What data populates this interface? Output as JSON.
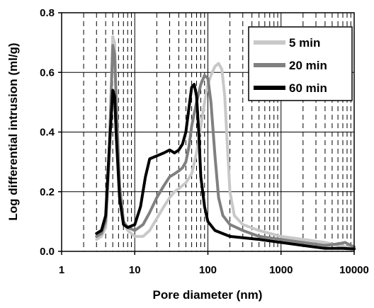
{
  "chart_data": {
    "type": "line",
    "title": "",
    "xlabel": "Pore diameter (nm)",
    "ylabel": "Log differential intrusion (ml/g)",
    "x_scale": "log",
    "xlim": [
      1,
      10000
    ],
    "ylim": [
      0,
      0.8
    ],
    "x_ticks": [
      1,
      10,
      100,
      1000,
      10000
    ],
    "x_tick_labels": [
      "1",
      "10",
      "100",
      "1000",
      "10000"
    ],
    "y_ticks": [
      0,
      0.2,
      0.4,
      0.6,
      0.8
    ],
    "y_tick_labels": [
      "0.0",
      "0.2",
      "0.4",
      "0.6",
      "0.8"
    ],
    "grid": "major solid, minor dashed vertical",
    "legend_position": "top-right",
    "series": [
      {
        "name": "5 min",
        "color": "#c8c8c8",
        "points": [
          [
            3.0,
            0.04
          ],
          [
            3.5,
            0.05
          ],
          [
            4.0,
            0.08
          ],
          [
            4.5,
            0.3
          ],
          [
            5.0,
            0.72
          ],
          [
            5.3,
            0.7
          ],
          [
            5.6,
            0.5
          ],
          [
            6.2,
            0.22
          ],
          [
            7.0,
            0.1
          ],
          [
            8.0,
            0.07
          ],
          [
            10,
            0.05
          ],
          [
            13,
            0.05
          ],
          [
            16,
            0.07
          ],
          [
            20,
            0.11
          ],
          [
            25,
            0.15
          ],
          [
            30,
            0.18
          ],
          [
            35,
            0.2
          ],
          [
            40,
            0.21
          ],
          [
            50,
            0.23
          ],
          [
            60,
            0.26
          ],
          [
            70,
            0.33
          ],
          [
            80,
            0.42
          ],
          [
            90,
            0.5
          ],
          [
            100,
            0.56
          ],
          [
            110,
            0.59
          ],
          [
            125,
            0.62
          ],
          [
            140,
            0.63
          ],
          [
            155,
            0.61
          ],
          [
            170,
            0.52
          ],
          [
            185,
            0.35
          ],
          [
            200,
            0.2
          ],
          [
            230,
            0.12
          ],
          [
            300,
            0.09
          ],
          [
            500,
            0.07
          ],
          [
            1000,
            0.05
          ],
          [
            2000,
            0.04
          ],
          [
            4000,
            0.03
          ],
          [
            6000,
            0.02
          ],
          [
            8000,
            0.015
          ],
          [
            10000,
            0.01
          ]
        ]
      },
      {
        "name": "20 min",
        "color": "#808080",
        "points": [
          [
            3.0,
            0.05
          ],
          [
            3.5,
            0.06
          ],
          [
            4.0,
            0.1
          ],
          [
            4.5,
            0.35
          ],
          [
            5.0,
            0.69
          ],
          [
            5.3,
            0.66
          ],
          [
            5.6,
            0.48
          ],
          [
            6.2,
            0.22
          ],
          [
            7.0,
            0.1
          ],
          [
            8.0,
            0.08
          ],
          [
            10,
            0.07
          ],
          [
            13,
            0.09
          ],
          [
            16,
            0.13
          ],
          [
            20,
            0.18
          ],
          [
            25,
            0.22
          ],
          [
            30,
            0.25
          ],
          [
            35,
            0.26
          ],
          [
            40,
            0.27
          ],
          [
            45,
            0.28
          ],
          [
            50,
            0.3
          ],
          [
            55,
            0.35
          ],
          [
            60,
            0.42
          ],
          [
            70,
            0.5
          ],
          [
            80,
            0.56
          ],
          [
            90,
            0.59
          ],
          [
            100,
            0.58
          ],
          [
            110,
            0.5
          ],
          [
            125,
            0.32
          ],
          [
            140,
            0.18
          ],
          [
            160,
            0.12
          ],
          [
            200,
            0.09
          ],
          [
            300,
            0.07
          ],
          [
            500,
            0.05
          ],
          [
            1000,
            0.04
          ],
          [
            2000,
            0.03
          ],
          [
            4000,
            0.02
          ],
          [
            6000,
            0.025
          ],
          [
            7500,
            0.03
          ],
          [
            9000,
            0.02
          ],
          [
            10000,
            0.015
          ]
        ]
      },
      {
        "name": "60 min",
        "color": "#000000",
        "points": [
          [
            3.0,
            0.06
          ],
          [
            3.5,
            0.07
          ],
          [
            4.0,
            0.12
          ],
          [
            4.5,
            0.35
          ],
          [
            5.0,
            0.54
          ],
          [
            5.3,
            0.52
          ],
          [
            5.6,
            0.38
          ],
          [
            6.2,
            0.18
          ],
          [
            7.0,
            0.09
          ],
          [
            8.0,
            0.08
          ],
          [
            10,
            0.09
          ],
          [
            12,
            0.15
          ],
          [
            14,
            0.25
          ],
          [
            16,
            0.31
          ],
          [
            20,
            0.32
          ],
          [
            25,
            0.33
          ],
          [
            30,
            0.34
          ],
          [
            35,
            0.33
          ],
          [
            40,
            0.34
          ],
          [
            45,
            0.36
          ],
          [
            50,
            0.4
          ],
          [
            55,
            0.48
          ],
          [
            60,
            0.55
          ],
          [
            65,
            0.56
          ],
          [
            70,
            0.52
          ],
          [
            75,
            0.4
          ],
          [
            80,
            0.25
          ],
          [
            90,
            0.15
          ],
          [
            100,
            0.1
          ],
          [
            125,
            0.07
          ],
          [
            200,
            0.05
          ],
          [
            500,
            0.04
          ],
          [
            1000,
            0.03
          ],
          [
            2000,
            0.02
          ],
          [
            4000,
            0.01
          ],
          [
            7000,
            0.01
          ],
          [
            10000,
            0.008
          ]
        ]
      }
    ]
  }
}
